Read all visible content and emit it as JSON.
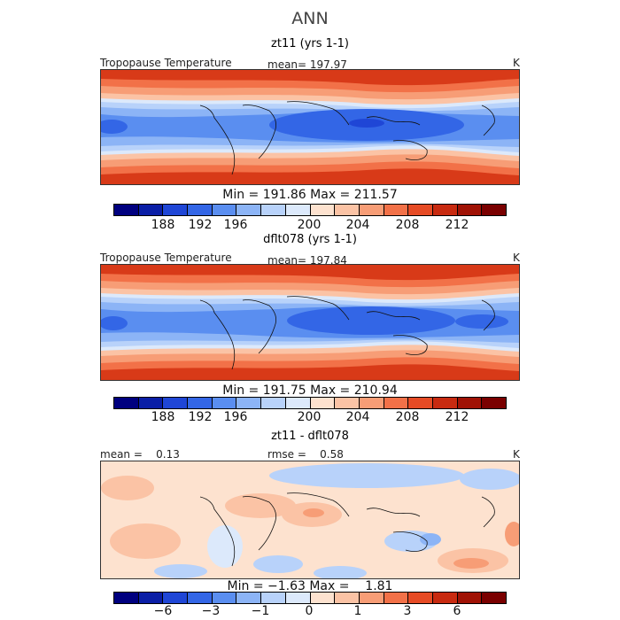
{
  "figure": {
    "title": "ANN"
  },
  "chart_data": [
    {
      "type": "heatmap",
      "title": "zt11 (yrs 1-1)",
      "left_label": "Tropopause Temperature",
      "mean_label": "mean= 197.97",
      "units": "K",
      "min_max_label": "Min = 191.86 Max = 211.57",
      "min": 191.86,
      "max": 211.57,
      "mean": 197.97,
      "colorbar_ticks": [
        "188",
        "192",
        "196",
        "200",
        "204",
        "208",
        "212"
      ],
      "colorbar_colors": [
        "#00007f",
        "#0a1ea6",
        "#1f46d6",
        "#3366e6",
        "#5a8ef0",
        "#8cb4f6",
        "#b8d2fa",
        "#dce9fb",
        "#fde2cf",
        "#fbc3a5",
        "#f79d76",
        "#f27148",
        "#e64b25",
        "#c82a10",
        "#a01205",
        "#7a0000"
      ],
      "x_extent": [
        -180,
        180
      ],
      "y_extent": [
        -90,
        90
      ]
    },
    {
      "type": "heatmap",
      "title": "dflt078 (yrs 1-1)",
      "left_label": "Tropopause Temperature",
      "mean_label": "mean= 197.84",
      "units": "K",
      "min_max_label": "Min = 191.75 Max = 210.94",
      "min": 191.75,
      "max": 210.94,
      "mean": 197.84,
      "colorbar_ticks": [
        "188",
        "192",
        "196",
        "200",
        "204",
        "208",
        "212"
      ],
      "colorbar_colors": [
        "#00007f",
        "#0a1ea6",
        "#1f46d6",
        "#3366e6",
        "#5a8ef0",
        "#8cb4f6",
        "#b8d2fa",
        "#dce9fb",
        "#fde2cf",
        "#fbc3a5",
        "#f79d76",
        "#f27148",
        "#e64b25",
        "#c82a10",
        "#a01205",
        "#7a0000"
      ],
      "x_extent": [
        -180,
        180
      ],
      "y_extent": [
        -90,
        90
      ]
    },
    {
      "type": "heatmap",
      "title": "zt11 - dflt078",
      "left_label": "mean =    0.13",
      "mean_label": "rmse =    0.58",
      "units": "K",
      "min_max_label": "Min = −1.63 Max =    1.81",
      "min": -1.63,
      "max": 1.81,
      "mean": 0.13,
      "rmse": 0.58,
      "colorbar_ticks": [
        "−6",
        "−3",
        "−1",
        "0",
        "1",
        "3",
        "6"
      ],
      "colorbar_colors": [
        "#00007f",
        "#0a1ea6",
        "#1f46d6",
        "#3366e6",
        "#5a8ef0",
        "#8cb4f6",
        "#b8d2fa",
        "#dce9fb",
        "#fde2cf",
        "#fbc3a5",
        "#f79d76",
        "#f27148",
        "#e64b25",
        "#c82a10",
        "#a01205",
        "#7a0000"
      ],
      "x_extent": [
        -180,
        180
      ],
      "y_extent": [
        -90,
        90
      ]
    }
  ]
}
